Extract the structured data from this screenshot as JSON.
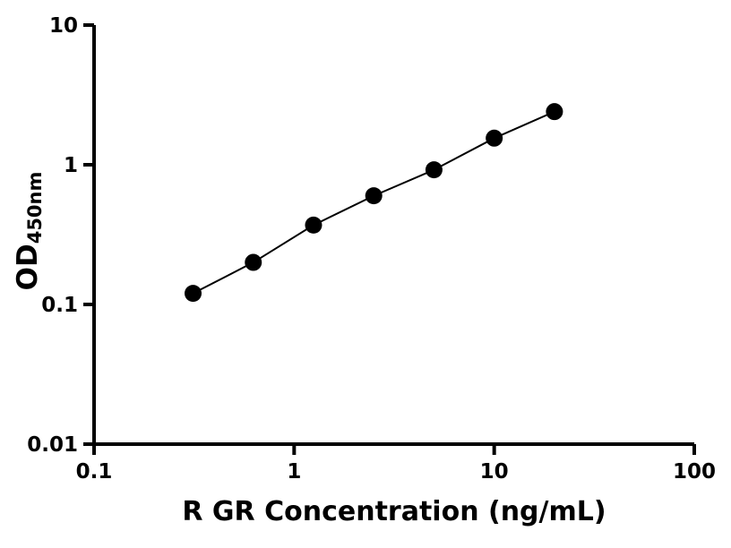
{
  "chart_data": {
    "type": "scatter",
    "title": "",
    "xlabel": "R GR Concentration (ng/mL)",
    "ylabel_main": "OD",
    "ylabel_sub": "450nm",
    "xscale": "log",
    "yscale": "log",
    "xlim": [
      0.1,
      100
    ],
    "ylim": [
      0.01,
      10
    ],
    "x_tick_values": [
      0.1,
      1,
      10,
      100
    ],
    "x_tick_labels": [
      "0.1",
      "1",
      "10",
      "100"
    ],
    "y_tick_values": [
      0.01,
      0.1,
      1,
      10
    ],
    "y_tick_labels": [
      "0.01",
      "0.1",
      "1",
      "10"
    ],
    "grid": false,
    "legend": "none",
    "series": [
      {
        "x": [
          0.3125,
          0.625,
          1.25,
          2.5,
          5,
          10,
          20
        ],
        "y": [
          0.12,
          0.2,
          0.37,
          0.6,
          0.92,
          1.55,
          2.4
        ],
        "marker": "circle",
        "line": true,
        "color": "#000000"
      }
    ],
    "colors": {
      "axis": "#000000",
      "marker": "#000000",
      "line": "#000000",
      "background": "#ffffff",
      "text": "#000000"
    }
  }
}
